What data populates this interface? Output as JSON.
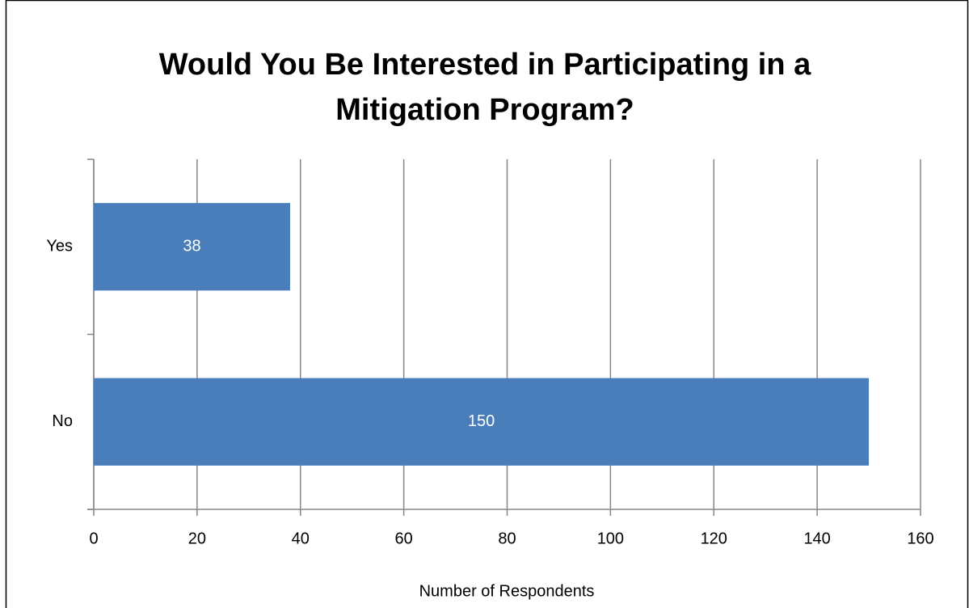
{
  "chart_data": {
    "type": "bar",
    "orientation": "horizontal",
    "title": "Would You Be Interested in Participating in a Mitigation Program?",
    "x_label": "Number of Respondents",
    "categories": [
      "Yes",
      "No"
    ],
    "values": [
      38,
      150
    ],
    "color": "#4a7ebb",
    "xlim": [
      0,
      160
    ],
    "xticks": [
      0,
      20,
      40,
      60,
      80,
      100,
      120,
      140,
      160
    ],
    "grid": true
  }
}
